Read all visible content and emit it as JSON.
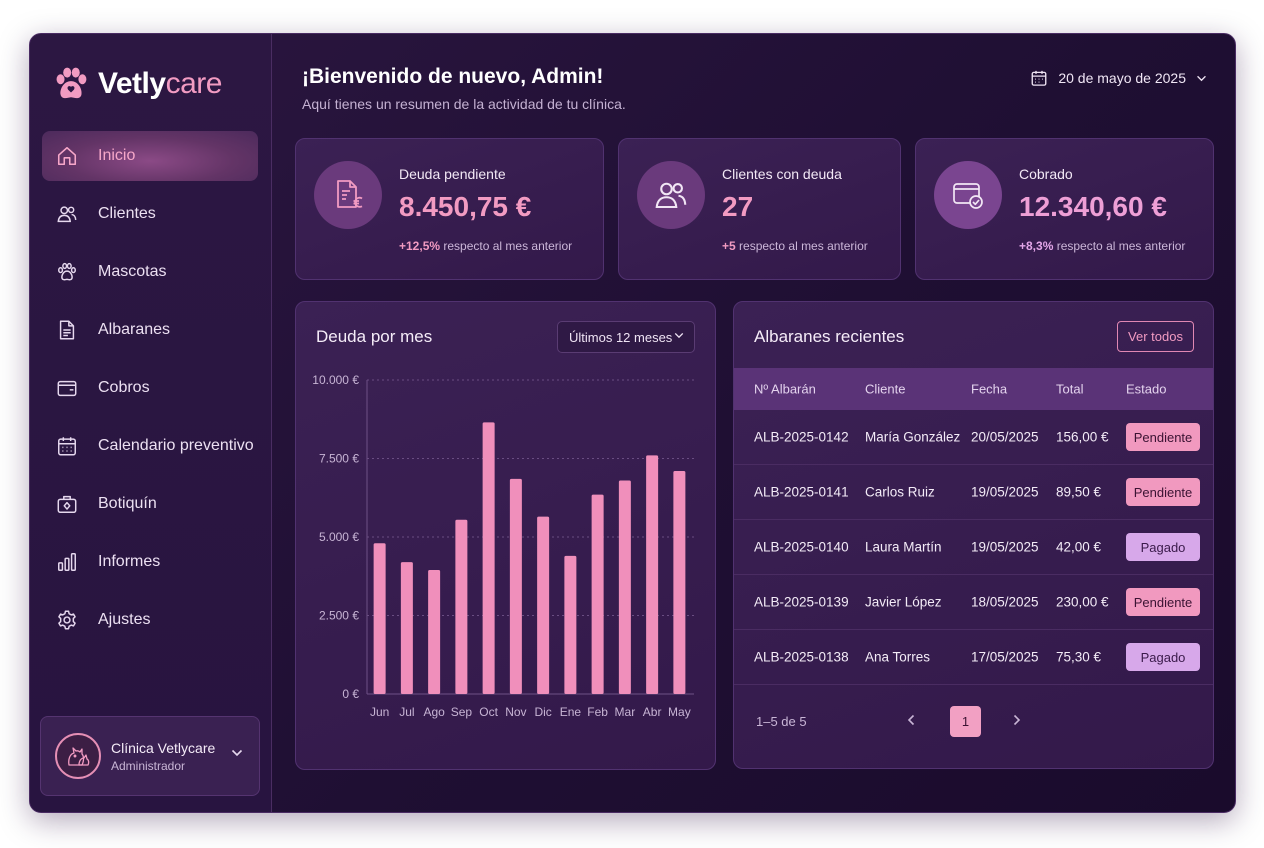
{
  "brand": {
    "name_bold": "Vetly",
    "name_light": "care"
  },
  "nav": [
    {
      "label": "Inicio",
      "icon": "home-icon",
      "active": true
    },
    {
      "label": "Clientes",
      "icon": "users-icon"
    },
    {
      "label": "Mascotas",
      "icon": "paw-icon"
    },
    {
      "label": "Albaranes",
      "icon": "document-icon"
    },
    {
      "label": "Cobros",
      "icon": "wallet-icon"
    },
    {
      "label": "Calendario preventivo",
      "icon": "calendar-icon"
    },
    {
      "label": "Botiquín",
      "icon": "first-aid-kit-icon"
    },
    {
      "label": "Informes",
      "icon": "bar-chart-icon"
    },
    {
      "label": "Ajustes",
      "icon": "gear-icon"
    }
  ],
  "profile": {
    "name": "Clínica Vetlycare",
    "role": "Administrador"
  },
  "header": {
    "greeting": "¡Bienvenido de nuevo, Admin!",
    "subtitle": "Aquí tienes un resumen de la actividad de tu clínica.",
    "date": "20 de mayo de 2025"
  },
  "stats": [
    {
      "label": "Deuda pendiente",
      "value": "8.450,75 €",
      "delta": "+12,5%",
      "delta_text": "respecto al mes anterior",
      "icon": "invoice-euro-icon"
    },
    {
      "label": "Clientes con deuda",
      "value": "27",
      "delta": "+5",
      "delta_text": "respecto al mes anterior",
      "icon": "users-icon"
    },
    {
      "label": "Cobrado",
      "value": "12.340,60 €",
      "delta": "+8,3%",
      "delta_text": "respecto al mes anterior",
      "icon": "card-check-icon"
    }
  ],
  "debt_chart": {
    "title": "Deuda por mes",
    "range_label": "Últimos 12 meses"
  },
  "chart_data": {
    "type": "bar",
    "title": "Deuda por mes",
    "categories": [
      "Jun",
      "Jul",
      "Ago",
      "Sep",
      "Oct",
      "Nov",
      "Dic",
      "Ene",
      "Feb",
      "Mar",
      "Abr",
      "May"
    ],
    "values": [
      4800,
      4200,
      3950,
      5550,
      8650,
      6850,
      5650,
      4400,
      6350,
      6800,
      7600,
      7100
    ],
    "y_ticks": [
      "10.000 €",
      "7.500 €",
      "5.000 €",
      "2.500 €",
      "0 €"
    ],
    "ylim": [
      0,
      10000
    ],
    "grid": true,
    "bar_color": "#f08fbb"
  },
  "recent": {
    "title": "Albaranes recientes",
    "view_all": "Ver todos",
    "columns": [
      "Nº Albarán",
      "Cliente",
      "Fecha",
      "Total",
      "Estado"
    ],
    "rows": [
      {
        "id": "ALB-2025-0142",
        "client": "María González",
        "date": "20/05/2025",
        "total": "156,00 €",
        "status": "Pendiente"
      },
      {
        "id": "ALB-2025-0141",
        "client": "Carlos Ruiz",
        "date": "19/05/2025",
        "total": "89,50 €",
        "status": "Pendiente"
      },
      {
        "id": "ALB-2025-0140",
        "client": "Laura Martín",
        "date": "19/05/2025",
        "total": "42,00 €",
        "status": "Pagado"
      },
      {
        "id": "ALB-2025-0139",
        "client": "Javier López",
        "date": "18/05/2025",
        "total": "230,00 €",
        "status": "Pendiente"
      },
      {
        "id": "ALB-2025-0138",
        "client": "Ana Torres",
        "date": "17/05/2025",
        "total": "75,30 €",
        "status": "Pagado"
      }
    ],
    "pager": {
      "info": "1–5 de 5",
      "current": "1"
    }
  },
  "colors": {
    "accent_pink": "#f29bc2",
    "accent_lilac": "#d7a8ea",
    "background": "#1f0f33"
  }
}
